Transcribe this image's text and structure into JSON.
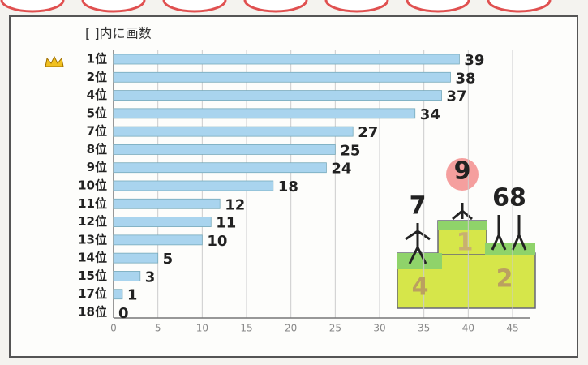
{
  "chart_data": {
    "type": "bar",
    "orientation": "horizontal",
    "title": "[ ]内に画数",
    "categories": [
      "1位",
      "2位",
      "4位",
      "5位",
      "7位",
      "8位",
      "9位",
      "10位",
      "11位",
      "12位",
      "13位",
      "14位",
      "15位",
      "17位",
      "18位"
    ],
    "values": [
      39,
      38,
      37,
      34,
      27,
      25,
      24,
      18,
      12,
      11,
      10,
      5,
      3,
      1,
      0
    ],
    "color": "#a9d4ee",
    "xlim": [
      0,
      47
    ],
    "xticks": [
      0,
      5,
      10,
      15,
      20,
      25,
      30,
      35,
      40,
      45
    ],
    "grid": true,
    "podium": {
      "labels": [
        "9",
        "7",
        "68",
        "1",
        "2",
        "4"
      ]
    }
  }
}
